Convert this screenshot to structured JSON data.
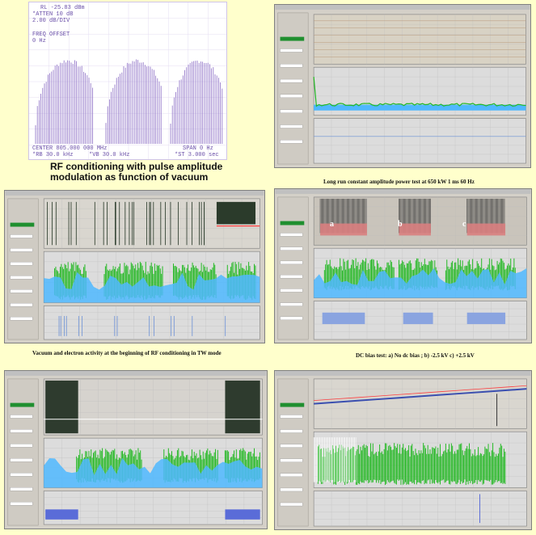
{
  "spectrum": {
    "rl": "RL -25.83 dBm",
    "atten": "*ATTEN 10 dB",
    "scale": "2.00 dB/DIV",
    "freq_offset_label": "FREQ OFFSET",
    "freq_offset_value": "0 Hz",
    "center": "CENTER 805.000 000 MHz",
    "span": "SPAN 0 Hz",
    "rbw": "*RB 30.0 kHz",
    "vbw": "*VB 30.0 kHz",
    "sweep": "*ST 3.000 sec"
  },
  "captions": {
    "spectrum": "RF conditioning with pulse amplitude modulation as function of vacuum",
    "long_run": "Long run constant amplitude power test at 650 kW 1 ms 60 Hz",
    "vacuum_tw": "Vacuum and electron activity at the beginning of RF conditioning in TW mode",
    "dc_bias": "DC bias test: a) No dc bias ; b) -2.5 kV c) +2.5 kV"
  },
  "dc_bias_letters": {
    "a": "a",
    "b": "b",
    "c": "c"
  },
  "colors": {
    "background": "#ffffcc",
    "spectrum_trace": "#8a6cc4",
    "green_trace": "#22b822",
    "blue_trace": "#4fb8ff",
    "red_trace": "#ff4040",
    "panel": "#d4d0c8"
  }
}
